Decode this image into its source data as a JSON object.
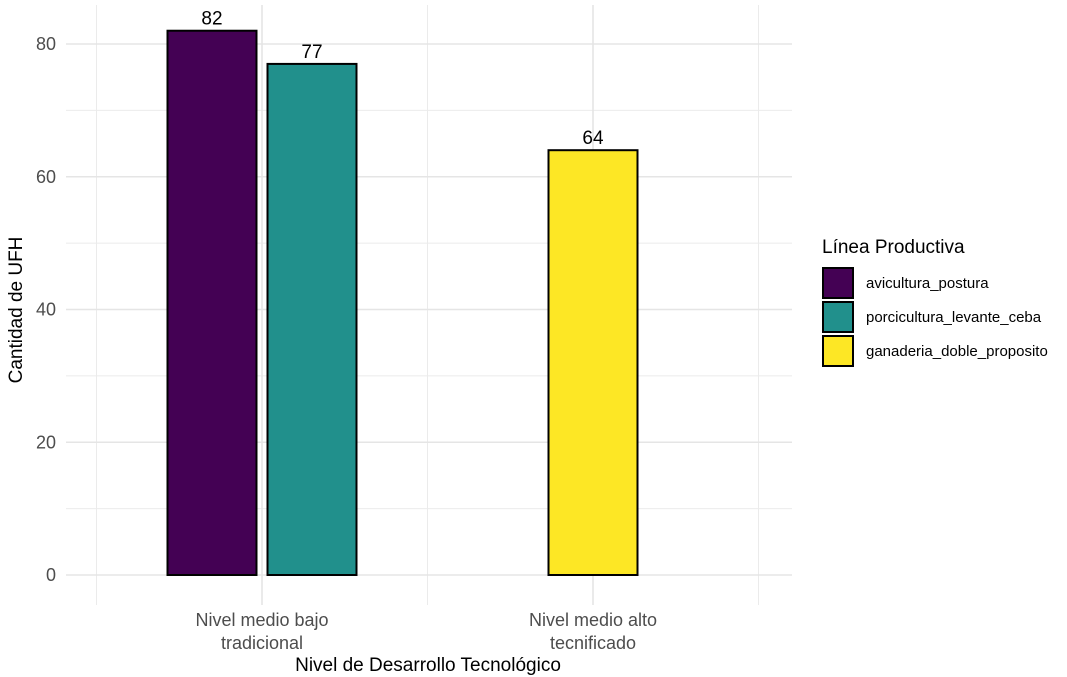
{
  "chart_data": {
    "type": "bar",
    "categories": [
      "Nivel medio bajo\ntradicional",
      "Nivel medio alto\ntecnificado"
    ],
    "xlabel": "Nivel de Desarrollo Tecnológico",
    "ylabel": "Cantidad de UFH",
    "ylim": [
      0,
      82
    ],
    "yticks": [
      0,
      20,
      40,
      60,
      80
    ],
    "grid": true,
    "legend": {
      "title": "Línea Productiva",
      "position": "right",
      "entries": [
        {
          "name": "avicultura_postura",
          "color": "#440154"
        },
        {
          "name": "porcicultura_levante_ceba",
          "color": "#21908C"
        },
        {
          "name": "ganaderia_doble_proposito",
          "color": "#FDE725"
        }
      ]
    },
    "bars": [
      {
        "category": 0,
        "series": "avicultura_postura",
        "value": 82,
        "label": "82",
        "color": "#440154"
      },
      {
        "category": 0,
        "series": "porcicultura_levante_ceba",
        "value": 77,
        "label": "77",
        "color": "#21908C"
      },
      {
        "category": 1,
        "series": "ganaderia_doble_proposito",
        "value": 64,
        "label": "64",
        "color": "#FDE725"
      }
    ]
  }
}
